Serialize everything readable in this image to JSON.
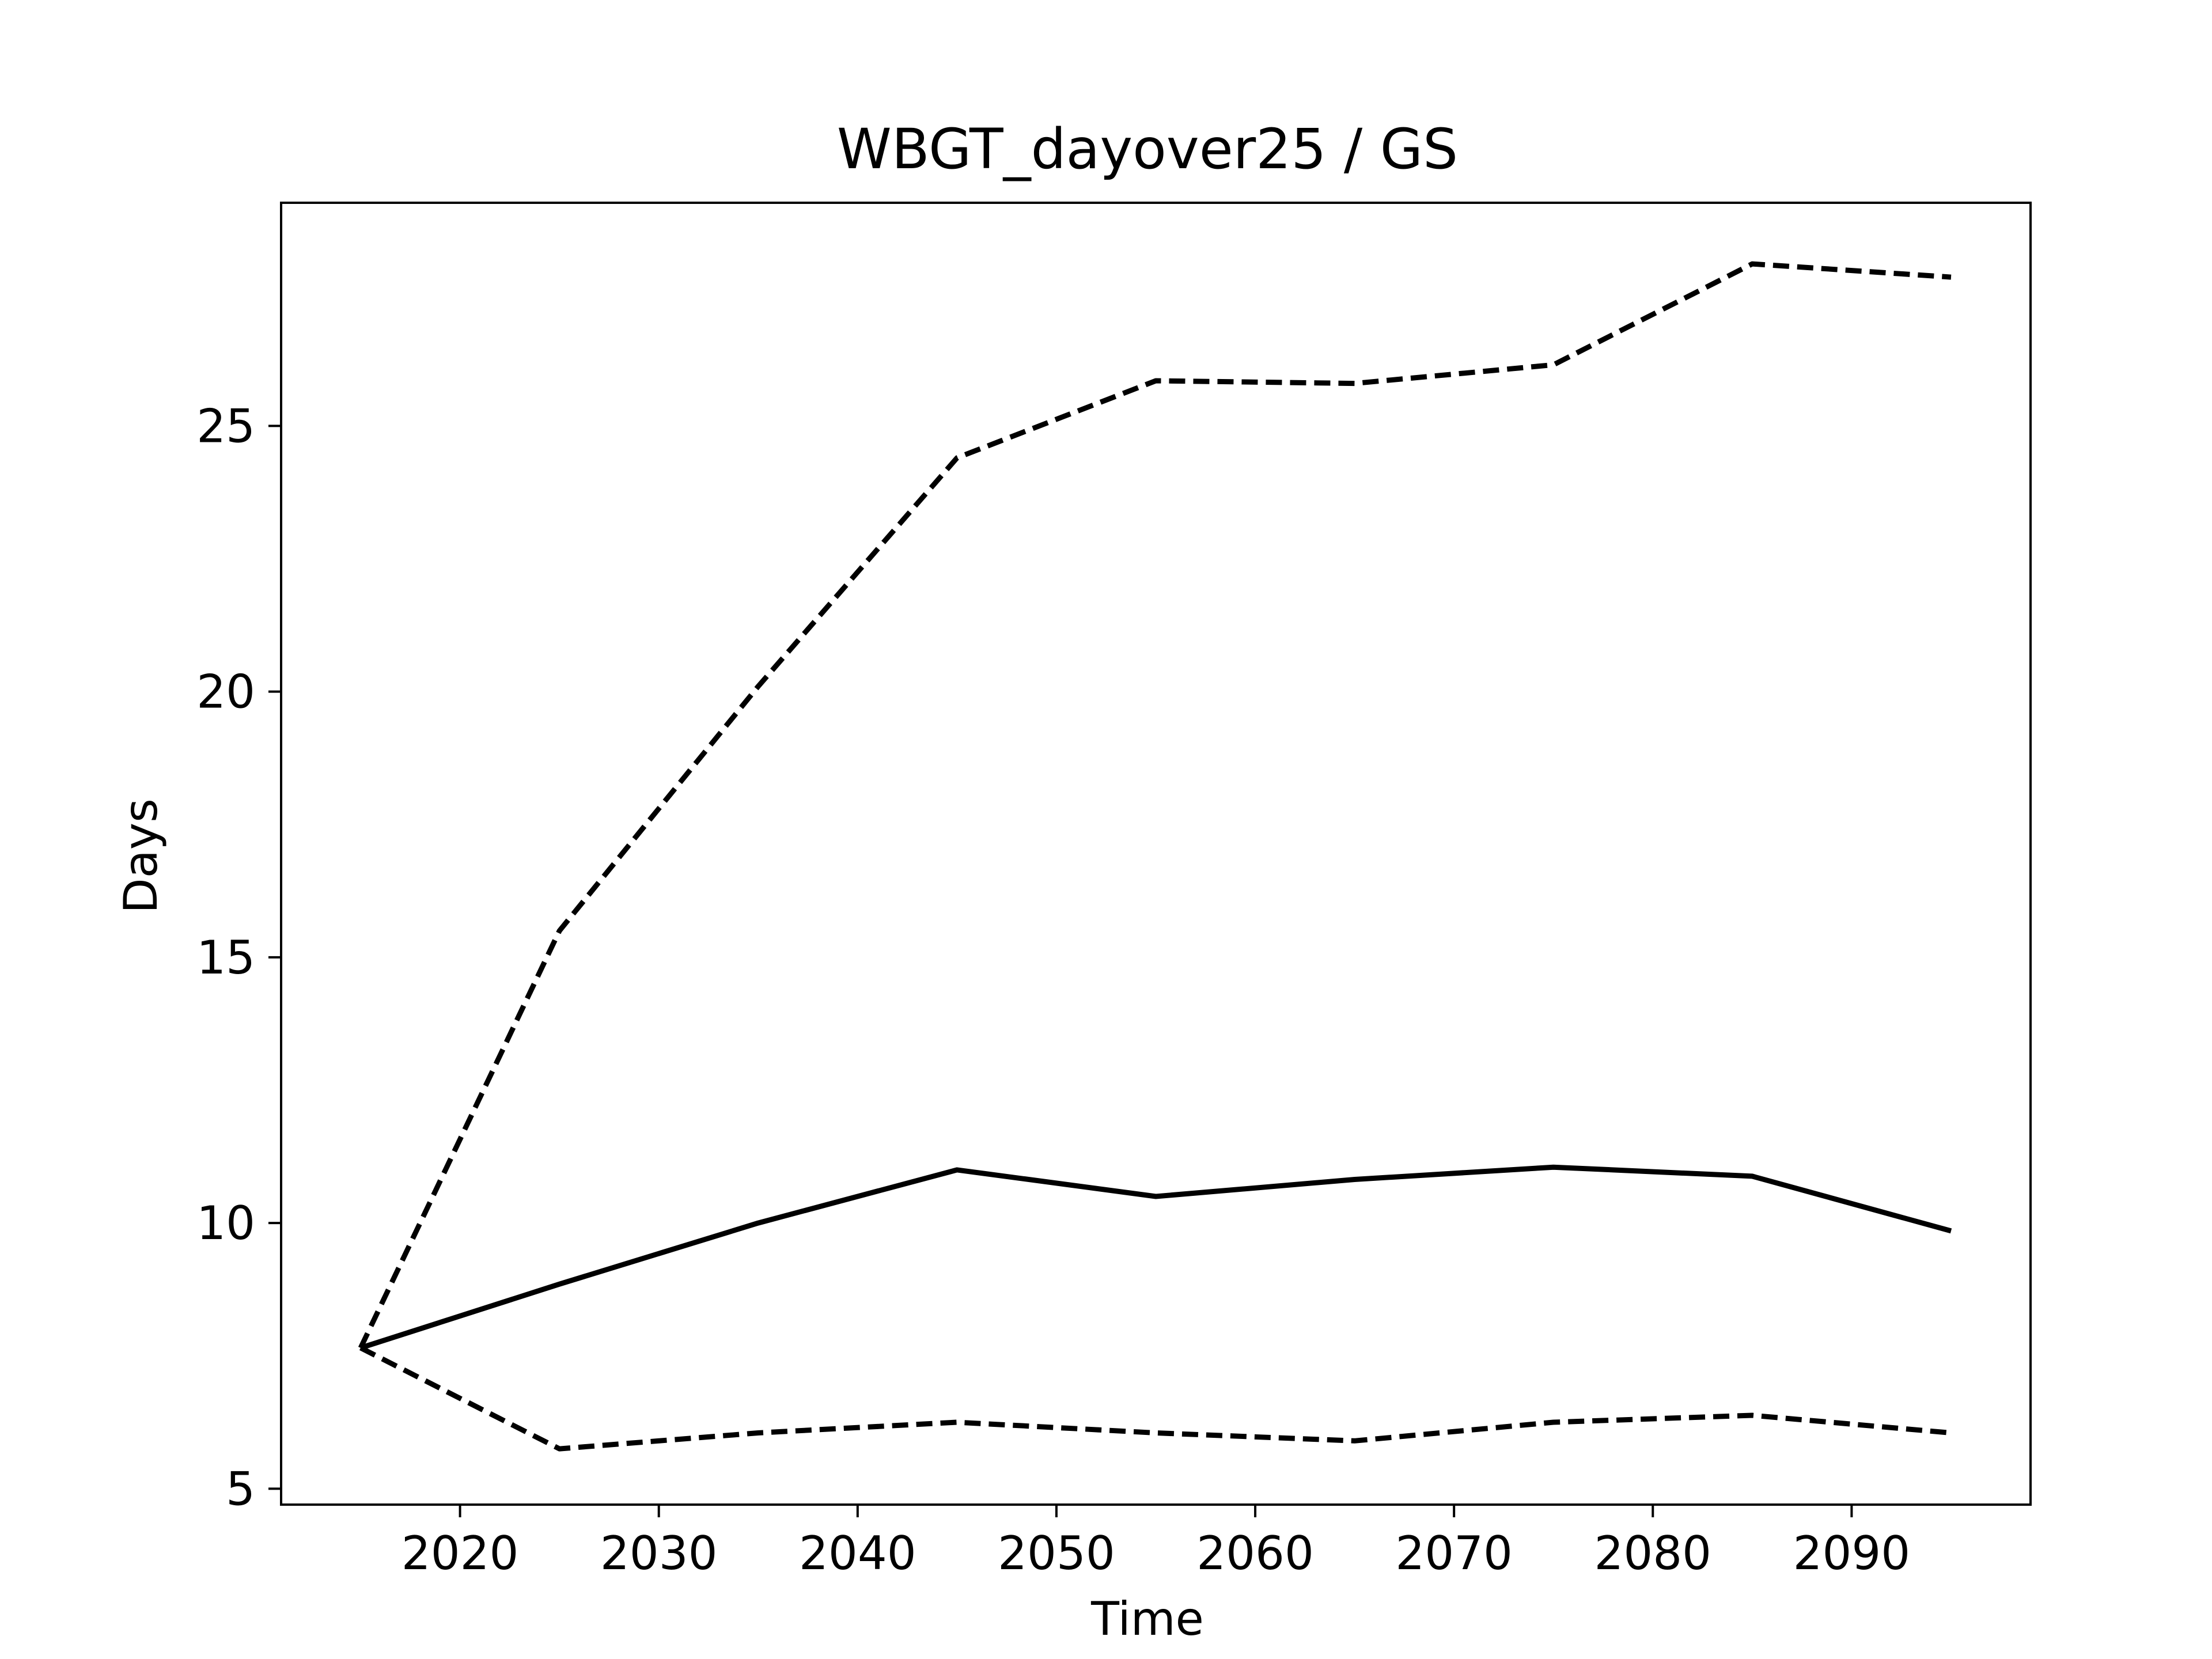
{
  "chart_data": {
    "type": "line",
    "title": "WBGT_dayover25 / GS",
    "xlabel": "Time",
    "ylabel": "Days",
    "xlim": [
      2011,
      2099
    ],
    "ylim": [
      4.7,
      29.2
    ],
    "xticks": [
      2020,
      2030,
      2040,
      2050,
      2060,
      2070,
      2080,
      2090
    ],
    "yticks": [
      5,
      10,
      15,
      20,
      25
    ],
    "x": [
      2015,
      2025,
      2035,
      2045,
      2055,
      2065,
      2075,
      2085,
      2095
    ],
    "grid": false,
    "legend": "none",
    "series": [
      {
        "values": [
          7.65,
          8.85,
          10.0,
          11.0,
          10.5,
          10.82,
          11.05,
          10.88,
          9.85
        ],
        "style": "solid",
        "color": "#000000"
      },
      {
        "values": [
          7.65,
          15.5,
          20.1,
          24.4,
          25.85,
          25.8,
          26.15,
          28.05,
          27.8
        ],
        "style": "dashed",
        "color": "#000000"
      },
      {
        "values": [
          7.65,
          5.75,
          6.05,
          6.25,
          6.05,
          5.9,
          6.25,
          6.38,
          6.05
        ],
        "style": "dashed",
        "color": "#000000"
      }
    ]
  }
}
